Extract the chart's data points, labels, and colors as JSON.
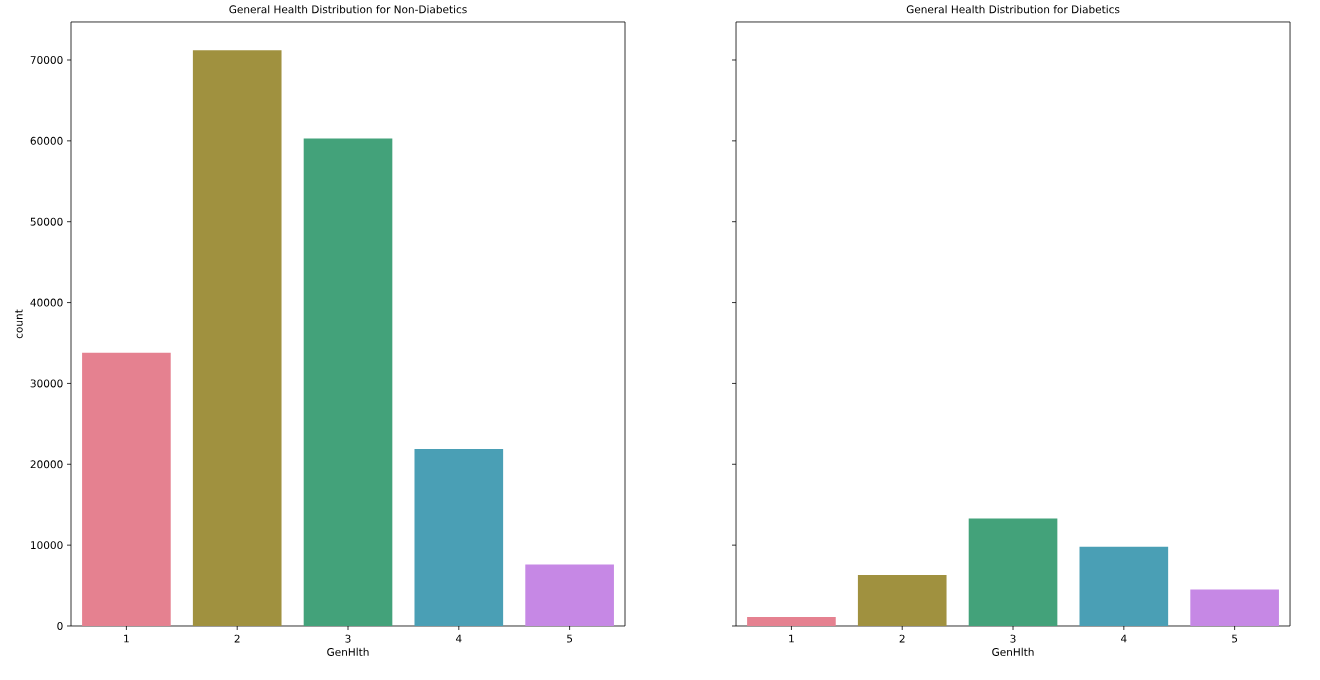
{
  "chart_data": [
    {
      "type": "bar",
      "title": "General Health Distribution for Non-Diabetics",
      "xlabel": "GenHlth",
      "ylabel": "count",
      "categories": [
        "1",
        "2",
        "3",
        "4",
        "5"
      ],
      "values": [
        33800,
        71200,
        60300,
        21900,
        7600
      ],
      "colors": [
        "#e58190",
        "#a0913f",
        "#43a27a",
        "#4a9fb5",
        "#c688e5"
      ],
      "ylim": [
        0,
        74700
      ],
      "yticks": [
        0,
        10000,
        20000,
        30000,
        40000,
        50000,
        60000,
        70000
      ]
    },
    {
      "type": "bar",
      "title": "General Health Distribution for Diabetics",
      "xlabel": "GenHlth",
      "categories": [
        "1",
        "2",
        "3",
        "4",
        "5"
      ],
      "values": [
        1100,
        6300,
        13300,
        9800,
        4500
      ],
      "colors": [
        "#e58190",
        "#a0913f",
        "#43a27a",
        "#4a9fb5",
        "#c688e5"
      ],
      "ylim": [
        0,
        74700
      ],
      "yticks": [
        0,
        10000,
        20000,
        30000,
        40000,
        50000,
        60000,
        70000
      ],
      "tick_labels": "x"
    }
  ]
}
